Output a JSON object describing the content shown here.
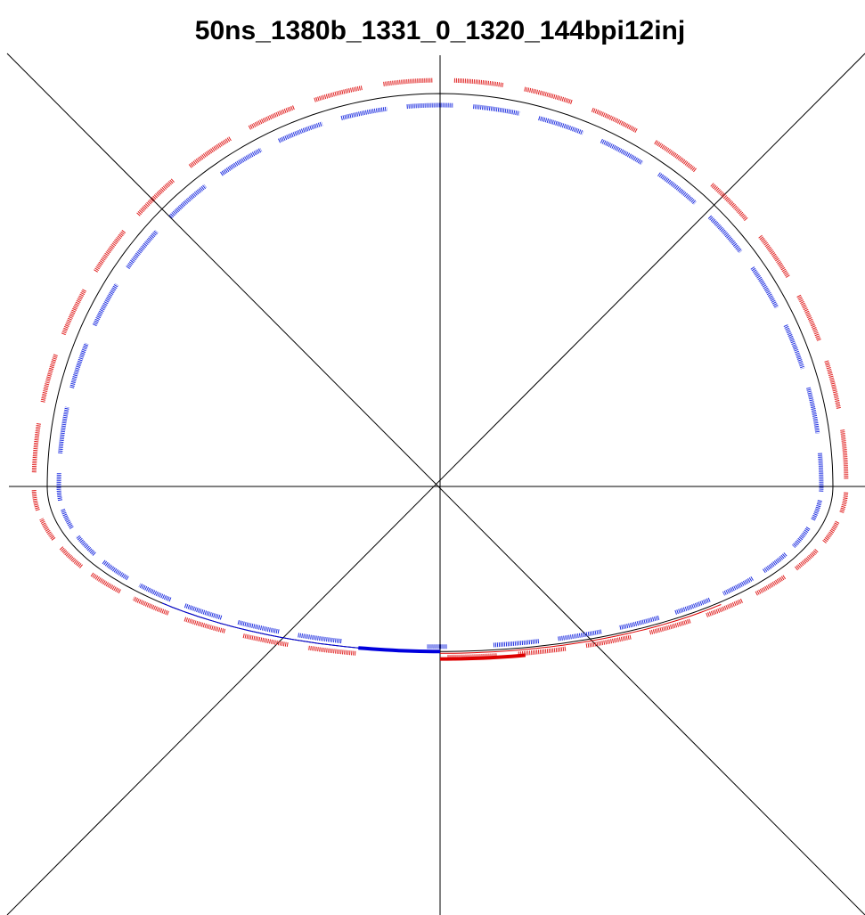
{
  "title": "50ns_1380b_1331_0_1320_144bpi12inj"
}
